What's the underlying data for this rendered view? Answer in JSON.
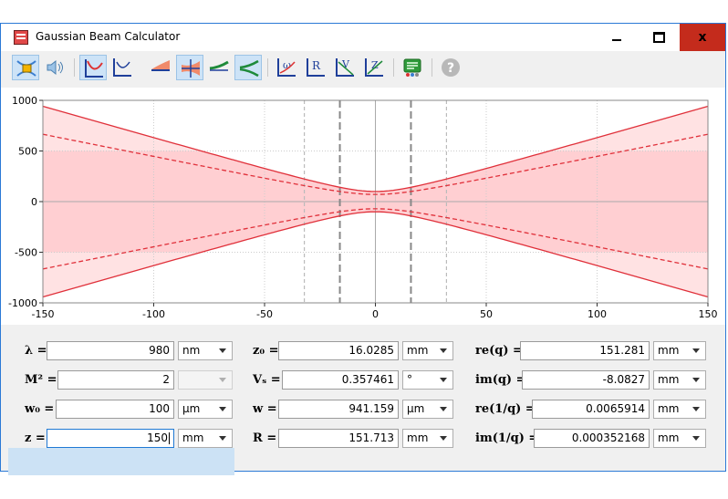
{
  "window": {
    "title": "Gaussian Beam Calculator",
    "minimize_label": "–",
    "maximize_label": "□",
    "close_label": "x"
  },
  "toolbar": {
    "buttons": [
      {
        "name": "beam-shape-icon",
        "active": true
      },
      {
        "name": "speaker-icon",
        "active": false
      },
      {
        "name": "plot-envelope-icon",
        "active": true
      },
      {
        "name": "plot-waist-icon",
        "active": false
      },
      {
        "name": "plot-half-icon",
        "active": false
      },
      {
        "name": "plot-full-icon",
        "active": true
      },
      {
        "name": "plot-wave-icon",
        "active": false
      },
      {
        "name": "plot-divergence-icon",
        "active": true
      },
      {
        "name": "curve-omega-icon",
        "active": false
      },
      {
        "name": "curve-r-icon",
        "active": false
      },
      {
        "name": "curve-v-icon",
        "active": false
      },
      {
        "name": "curve-z-icon",
        "active": false
      },
      {
        "name": "report-icon",
        "active": false
      },
      {
        "name": "help-icon",
        "active": false
      }
    ]
  },
  "chart_data": {
    "type": "line",
    "title": "",
    "xlabel": "",
    "ylabel": "",
    "xlim": [
      -150,
      150
    ],
    "ylim": [
      -1000,
      1000
    ],
    "x_ticks": [
      "-150",
      "-100",
      "-50",
      "0",
      "50",
      "100",
      "150"
    ],
    "y_ticks": [
      "1000",
      "500",
      "0",
      "-500",
      "-1000"
    ],
    "waist_um": 100,
    "rayleigh_mm": 16.0285,
    "series": [
      {
        "style": "solid",
        "color": "#e0303a",
        "w_at_150": 941.159
      },
      {
        "style": "dashed",
        "color": "#e0303a",
        "w_at_150": 665
      }
    ],
    "fill_color": "#ffcfd2",
    "markers": [
      {
        "x": -32.06,
        "style": "dashed-light"
      },
      {
        "x": -16.03,
        "style": "dashed-dark"
      },
      {
        "x": 16.03,
        "style": "dashed-dark"
      },
      {
        "x": 32.06,
        "style": "dashed-light"
      }
    ],
    "grid": true
  },
  "form": {
    "col1": [
      {
        "label": "λ =",
        "value": "980",
        "unit": "nm",
        "enabled": true
      },
      {
        "label": "M² =",
        "value": "2",
        "unit": "",
        "enabled": false
      },
      {
        "label": "w₀ =",
        "value": "100",
        "unit": "μm",
        "enabled": true
      },
      {
        "label": "z =",
        "value": "150",
        "unit": "mm",
        "enabled": true
      }
    ],
    "col2": [
      {
        "label": "z₀ =",
        "value": "16.0285",
        "unit": "mm"
      },
      {
        "label": "Vₛ =",
        "value": "0.357461",
        "unit": "°"
      },
      {
        "label": "w =",
        "value": "941.159",
        "unit": "μm"
      },
      {
        "label": "R =",
        "value": "151.713",
        "unit": "mm"
      }
    ],
    "col3": [
      {
        "label": "re(q) =",
        "value": "151.281",
        "unit": "mm"
      },
      {
        "label": "im(q) =",
        "value": "-8.0827",
        "unit": "mm"
      },
      {
        "label": "re(1/q) =",
        "value": "0.0065914",
        "unit": "mm"
      },
      {
        "label": "im(1/q) =",
        "value": "0.000352168",
        "unit": "mm"
      }
    ]
  }
}
